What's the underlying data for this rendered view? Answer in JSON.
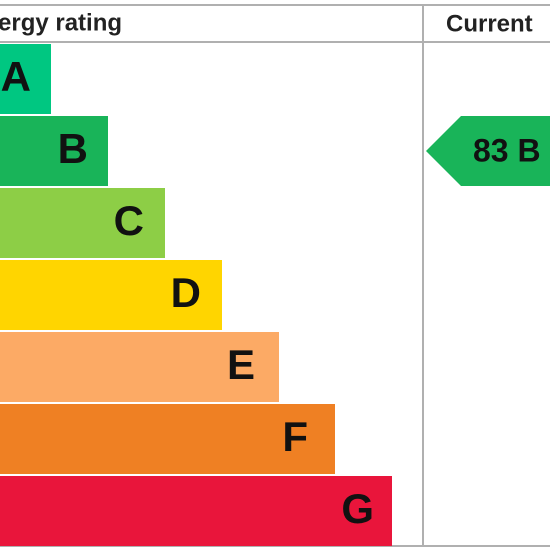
{
  "header": {
    "title": "ergy rating",
    "current": "Current"
  },
  "bands": [
    {
      "label": "A"
    },
    {
      "label": "B"
    },
    {
      "label": "C"
    },
    {
      "label": "D"
    },
    {
      "label": "E"
    },
    {
      "label": "F"
    },
    {
      "label": "G"
    }
  ],
  "current_rating": {
    "label": "83 B"
  }
}
